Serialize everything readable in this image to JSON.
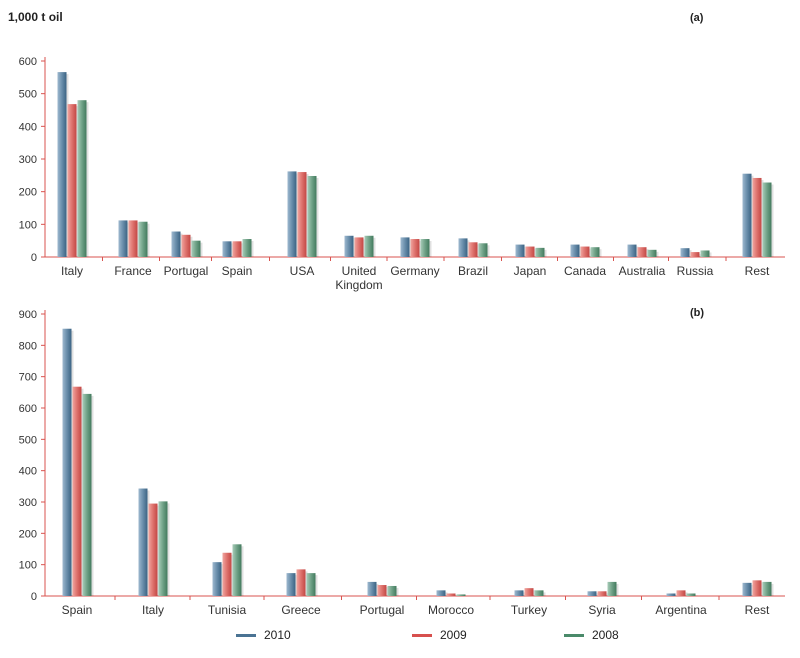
{
  "unit_label": "1,000 t oil",
  "colors": {
    "2010": "#4a7393",
    "2009": "#d7504e",
    "2008": "#4a8a6a",
    "axis": "#d9534f"
  },
  "chart_data": [
    {
      "type": "bar",
      "panel_label": "(a)",
      "ylabel": "1,000 t oil",
      "ylim": [
        0,
        600
      ],
      "yticks": [
        "0",
        "100",
        "200",
        "300",
        "400",
        "500",
        "600"
      ],
      "categories": [
        "Italy",
        "France",
        "Portugal",
        "Spain",
        "USA",
        "United Kingdom",
        "Germany",
        "Brazil",
        "Japan",
        "Canada",
        "Australia",
        "Russia",
        "Rest"
      ],
      "series": [
        {
          "name": "2010",
          "values": [
            566,
            112,
            78,
            48,
            262,
            65,
            60,
            57,
            38,
            38,
            38,
            27,
            255
          ]
        },
        {
          "name": "2009",
          "values": [
            468,
            112,
            68,
            48,
            260,
            60,
            55,
            45,
            32,
            32,
            30,
            15,
            242
          ]
        },
        {
          "name": "2008",
          "values": [
            480,
            108,
            50,
            55,
            248,
            65,
            55,
            42,
            28,
            30,
            22,
            20,
            228
          ]
        }
      ],
      "legend": "bottom"
    },
    {
      "type": "bar",
      "panel_label": "(b)",
      "ylim": [
        0,
        900
      ],
      "yticks": [
        "0",
        "100",
        "200",
        "300",
        "400",
        "500",
        "600",
        "700",
        "800",
        "900"
      ],
      "categories": [
        "Spain",
        "Italy",
        "Tunisia",
        "Greece",
        "Portugal",
        "Morocco",
        "Turkey",
        "Syria",
        "Argentina",
        "Rest"
      ],
      "series": [
        {
          "name": "2010",
          "values": [
            853,
            343,
            108,
            73,
            45,
            18,
            18,
            15,
            8,
            42
          ]
        },
        {
          "name": "2009",
          "values": [
            668,
            295,
            138,
            85,
            35,
            8,
            25,
            15,
            18,
            50
          ]
        },
        {
          "name": "2008",
          "values": [
            645,
            302,
            165,
            73,
            32,
            5,
            18,
            45,
            8,
            45
          ]
        }
      ],
      "legend": "bottom"
    }
  ],
  "legend": [
    {
      "label": "2010"
    },
    {
      "label": "2009"
    },
    {
      "label": "2008"
    }
  ]
}
